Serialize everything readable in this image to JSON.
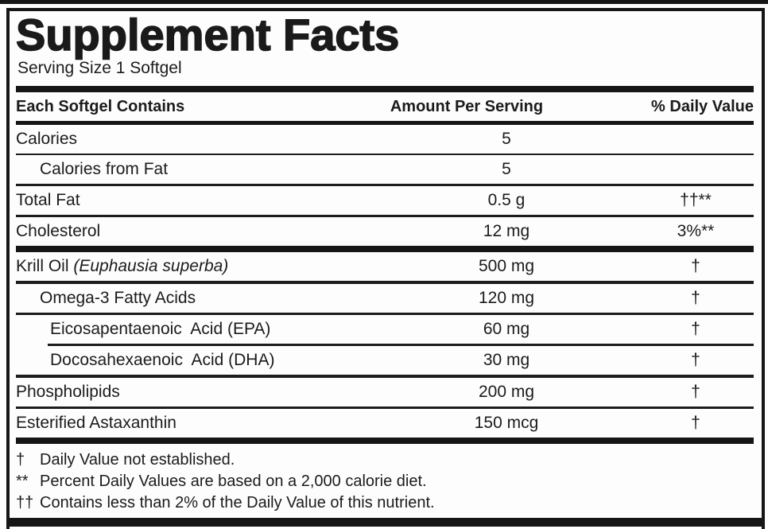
{
  "label": {
    "title": "Supplement Facts",
    "serving_size": "Serving Size 1 Softgel",
    "columns": {
      "contains": "Each Softgel Contains",
      "amount": "Amount Per Serving",
      "daily_value": "% Daily Value"
    },
    "rows": [
      {
        "name": "Calories",
        "amount": "5",
        "dv": ""
      },
      {
        "name": "Calories from Fat",
        "amount": "5",
        "dv": ""
      },
      {
        "name": "Total Fat",
        "amount": "0.5 g",
        "dv": "††**"
      },
      {
        "name": "Cholesterol",
        "amount": "12 mg",
        "dv": "3%**"
      },
      {
        "name": "Krill Oil ",
        "name_italic": "(Euphausia superba)",
        "amount": "500 mg",
        "dv": "†"
      },
      {
        "name": "Omega-3 Fatty Acids",
        "amount": "120 mg",
        "dv": "†"
      },
      {
        "name": "Eicosapentaenoic  Acid (EPA)",
        "amount": "60 mg",
        "dv": "†"
      },
      {
        "name": "Docosahexaenoic  Acid (DHA)",
        "amount": "30 mg",
        "dv": "†"
      },
      {
        "name": "Phospholipids",
        "amount": "200 mg",
        "dv": "†"
      },
      {
        "name": "Esterified Astaxanthin",
        "amount": "150 mcg",
        "dv": "†"
      }
    ],
    "footnotes": [
      {
        "marker": "†",
        "text": "Daily Value not established."
      },
      {
        "marker": "**",
        "text": "Percent Daily Values are based on a 2,000 calorie diet."
      },
      {
        "marker": "††",
        "text": "Contains less than 2% of the Daily Value of this nutrient."
      }
    ],
    "colors": {
      "ink": "#161616",
      "background": "#fdfdfd"
    }
  }
}
